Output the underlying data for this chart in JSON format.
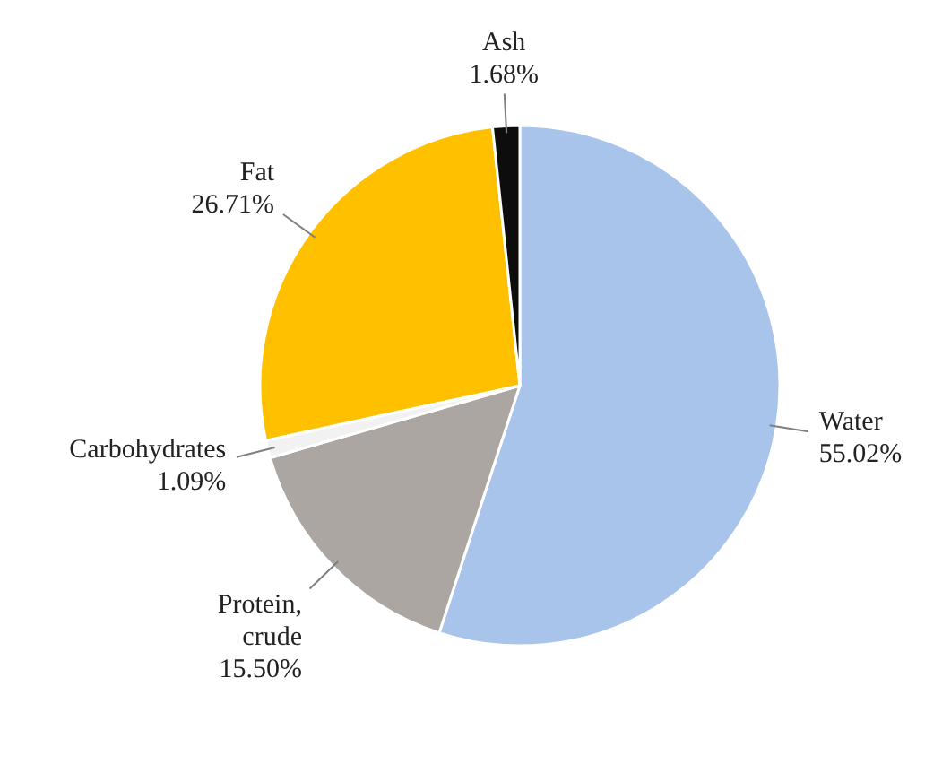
{
  "chart_data": {
    "type": "pie",
    "categories": [
      "Water",
      "Protein, crude",
      "Carbohydrates",
      "Fat",
      "Ash"
    ],
    "values": [
      55.02,
      15.5,
      1.09,
      26.71,
      1.68
    ],
    "colors": [
      "#a9c4eb",
      "#aca6a2",
      "#f2f2f2",
      "#ffc000",
      "#0d0d0d"
    ],
    "value_labels": [
      "55.02%",
      "15.50%",
      "1.09%",
      "26.71%",
      "1.68%"
    ]
  }
}
